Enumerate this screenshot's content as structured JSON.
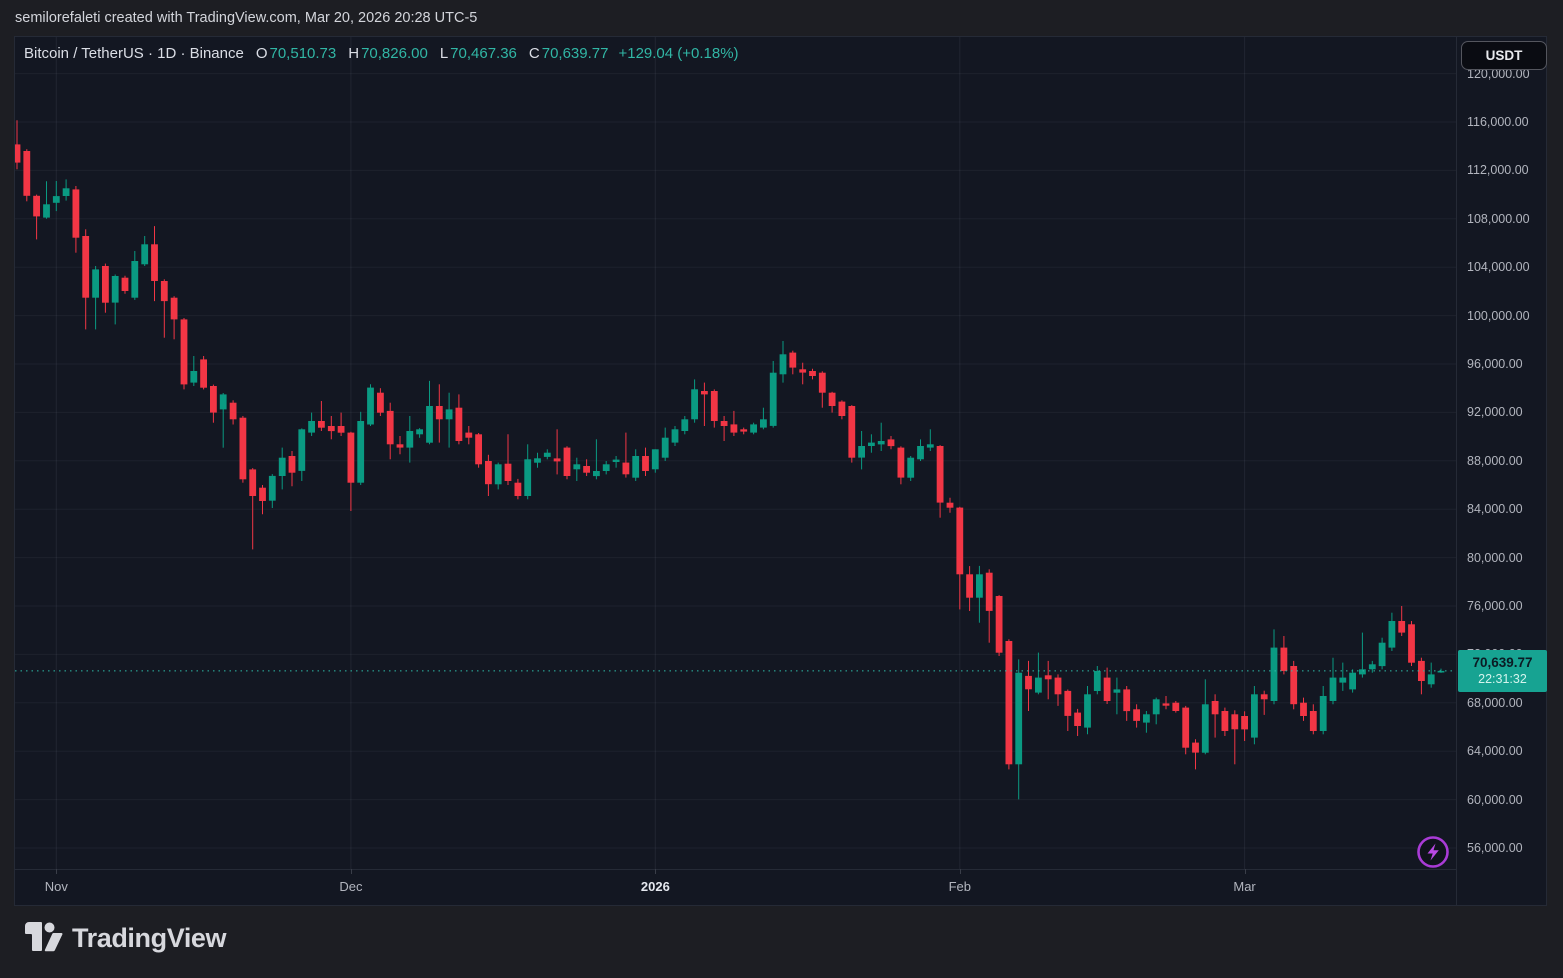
{
  "top_bar": {
    "text": "semilorefaleti created with TradingView.com, Mar 20, 2026 20:28 UTC-5"
  },
  "header": {
    "title": "Bitcoin / TetherUS · 1D · Binance",
    "o_label": "O",
    "o_value": "70,510.73",
    "h_label": "H",
    "h_value": "70,826.00",
    "l_label": "L",
    "l_value": "70,467.36",
    "c_label": "C",
    "c_value": "70,639.77",
    "change": "+129.04 (+0.18%)"
  },
  "currency_button": {
    "label": "USDT"
  },
  "price_axis": {
    "badge": {
      "price": "70,639.77",
      "countdown": "22:31:32"
    }
  },
  "footer": {
    "logo_text": "TradingView"
  },
  "colors": {
    "up": "#0a9a82",
    "down": "#f23645",
    "badge": "#17a392",
    "dotted_line": "#2fbca9",
    "teal_text": "#31b6a5",
    "accent_purple": "#a93bd6",
    "panel_bg": "#131722"
  },
  "chart_data": {
    "type": "candlestick",
    "symbol": "Bitcoin / TetherUS",
    "interval": "1D",
    "exchange": "Binance",
    "last_price": 70639.77,
    "ylim": [
      56000,
      120000
    ],
    "legend_position": "none",
    "grid": true,
    "price_ticks": [
      {
        "label": "120,000.00",
        "value": 120000
      },
      {
        "label": "116,000.00",
        "value": 116000
      },
      {
        "label": "112,000.00",
        "value": 112000
      },
      {
        "label": "108,000.00",
        "value": 108000
      },
      {
        "label": "104,000.00",
        "value": 104000
      },
      {
        "label": "100,000.00",
        "value": 100000
      },
      {
        "label": "96,000.00",
        "value": 96000
      },
      {
        "label": "92,000.00",
        "value": 92000
      },
      {
        "label": "88,000.00",
        "value": 88000
      },
      {
        "label": "84,000.00",
        "value": 84000
      },
      {
        "label": "80,000.00",
        "value": 80000
      },
      {
        "label": "76,000.00",
        "value": 76000
      },
      {
        "label": "72,000.00",
        "value": 72000
      },
      {
        "label": "68,000.00",
        "value": 68000
      },
      {
        "label": "64,000.00",
        "value": 64000
      },
      {
        "label": "60,000.00",
        "value": 60000
      },
      {
        "label": "56,000.00",
        "value": 56000
      }
    ],
    "time_ticks": [
      {
        "label": "Nov",
        "index": 4,
        "year": false
      },
      {
        "label": "Dec",
        "index": 34,
        "year": false
      },
      {
        "label": "2026",
        "index": 65,
        "year": true
      },
      {
        "label": "Feb",
        "index": 96,
        "year": false
      },
      {
        "label": "Mar",
        "index": 125,
        "year": false
      }
    ],
    "candles": [
      [
        114150,
        116150,
        112100,
        112650
      ],
      [
        113600,
        113750,
        109450,
        109900
      ],
      [
        109900,
        110000,
        106300,
        108200
      ],
      [
        108100,
        111100,
        108000,
        109200
      ],
      [
        109330,
        111120,
        108640,
        109880
      ],
      [
        109880,
        111260,
        109500,
        110520
      ],
      [
        110430,
        110710,
        105200,
        106440
      ],
      [
        106580,
        107130,
        98860,
        101480
      ],
      [
        101480,
        104100,
        98860,
        103820
      ],
      [
        104100,
        104300,
        100240,
        101070
      ],
      [
        101070,
        103400,
        99270,
        103270
      ],
      [
        103130,
        103300,
        101800,
        102030
      ],
      [
        101480,
        105340,
        101300,
        104510
      ],
      [
        104240,
        106580,
        104100,
        105890
      ],
      [
        105890,
        107400,
        101200,
        102860
      ],
      [
        102860,
        103000,
        98170,
        101200
      ],
      [
        101480,
        101600,
        98040,
        99690
      ],
      [
        99690,
        99800,
        93900,
        94320
      ],
      [
        94460,
        96660,
        94180,
        95420
      ],
      [
        96380,
        96660,
        93900,
        94040
      ],
      [
        94180,
        94300,
        91150,
        91980
      ],
      [
        92250,
        93600,
        89080,
        93490
      ],
      [
        92800,
        93000,
        91000,
        91430
      ],
      [
        91560,
        91700,
        86190,
        86470
      ],
      [
        87290,
        87400,
        80680,
        85090
      ],
      [
        85780,
        86000,
        83580,
        84680
      ],
      [
        84700,
        86900,
        84100,
        86750
      ],
      [
        86750,
        89090,
        85640,
        88260
      ],
      [
        88400,
        88810,
        85900,
        87020
      ],
      [
        87160,
        90680,
        86330,
        90600
      ],
      [
        90330,
        91980,
        90050,
        91290
      ],
      [
        91290,
        92940,
        90460,
        90740
      ],
      [
        90880,
        91700,
        89780,
        90460
      ],
      [
        90880,
        91980,
        90050,
        90330
      ],
      [
        90330,
        90400,
        83850,
        86190
      ],
      [
        86190,
        92050,
        86000,
        91290
      ],
      [
        91000,
        94320,
        90880,
        94050
      ],
      [
        93630,
        94000,
        91700,
        91980
      ],
      [
        92120,
        92800,
        88120,
        89360
      ],
      [
        89360,
        90050,
        88540,
        89090
      ],
      [
        89090,
        91700,
        87850,
        90460
      ],
      [
        90190,
        90700,
        89900,
        90600
      ],
      [
        89500,
        94600,
        89360,
        92530
      ],
      [
        92530,
        94320,
        89500,
        91430
      ],
      [
        91430,
        93630,
        89090,
        92250
      ],
      [
        92390,
        93490,
        89360,
        89640
      ],
      [
        90330,
        90880,
        89360,
        89910
      ],
      [
        90190,
        90300,
        87430,
        87710
      ],
      [
        87980,
        88500,
        85090,
        86060
      ],
      [
        86060,
        87850,
        85640,
        87710
      ],
      [
        87760,
        90190,
        86000,
        86330
      ],
      [
        86190,
        86500,
        84820,
        85090
      ],
      [
        85090,
        89360,
        84820,
        88120
      ],
      [
        87850,
        88670,
        87430,
        88210
      ],
      [
        88320,
        88950,
        88120,
        88670
      ],
      [
        88200,
        90600,
        86880,
        87950
      ],
      [
        89090,
        89200,
        86470,
        86740
      ],
      [
        87300,
        88260,
        86330,
        87710
      ],
      [
        87570,
        88120,
        86740,
        87020
      ],
      [
        86740,
        89780,
        86470,
        87160
      ],
      [
        87160,
        87980,
        86880,
        87710
      ],
      [
        87900,
        88400,
        87430,
        88100
      ],
      [
        87850,
        90330,
        86610,
        86880
      ],
      [
        86610,
        88950,
        86330,
        88400
      ],
      [
        88400,
        89090,
        86740,
        87160
      ],
      [
        87300,
        88950,
        87020,
        88950
      ],
      [
        88260,
        90740,
        87980,
        89910
      ],
      [
        89500,
        90880,
        89220,
        90600
      ],
      [
        90460,
        91700,
        90190,
        91430
      ],
      [
        91430,
        94730,
        91150,
        93910
      ],
      [
        93770,
        94460,
        90880,
        93490
      ],
      [
        93770,
        93900,
        90740,
        91290
      ],
      [
        91290,
        91700,
        89640,
        90880
      ],
      [
        91010,
        92120,
        90050,
        90330
      ],
      [
        90600,
        90740,
        90190,
        90410
      ],
      [
        90330,
        91150,
        90190,
        91010
      ],
      [
        90740,
        92390,
        90600,
        91430
      ],
      [
        90880,
        96250,
        90740,
        95280
      ],
      [
        95150,
        97900,
        94460,
        96800
      ],
      [
        96940,
        97100,
        95150,
        95700
      ],
      [
        95560,
        96110,
        94320,
        95290
      ],
      [
        95420,
        95600,
        94730,
        95010
      ],
      [
        95280,
        95400,
        92390,
        93630
      ],
      [
        93630,
        93700,
        91980,
        92530
      ],
      [
        92890,
        93000,
        91430,
        91700
      ],
      [
        92530,
        92600,
        87850,
        88260
      ],
      [
        88260,
        90460,
        87290,
        89220
      ],
      [
        89220,
        90190,
        88670,
        89500
      ],
      [
        89360,
        91150,
        88810,
        89640
      ],
      [
        89770,
        90050,
        88950,
        89220
      ],
      [
        89090,
        89200,
        86060,
        86610
      ],
      [
        86610,
        88400,
        86330,
        88260
      ],
      [
        88120,
        89770,
        87980,
        89220
      ],
      [
        89090,
        90600,
        88810,
        89360
      ],
      [
        89220,
        89300,
        83300,
        84540
      ],
      [
        84540,
        84950,
        83710,
        84130
      ],
      [
        84130,
        84200,
        75720,
        78620
      ],
      [
        78620,
        79300,
        75590,
        76690
      ],
      [
        76690,
        79310,
        74620,
        78620
      ],
      [
        78750,
        79030,
        72970,
        75590
      ],
      [
        76830,
        76900,
        71870,
        72140
      ],
      [
        73110,
        73250,
        62500,
        62920
      ],
      [
        62920,
        71590,
        60020,
        70490
      ],
      [
        70220,
        71460,
        67320,
        69110
      ],
      [
        68840,
        72150,
        68700,
        70080
      ],
      [
        70270,
        71460,
        68290,
        69940
      ],
      [
        70080,
        70350,
        67740,
        68700
      ],
      [
        68980,
        69100,
        65670,
        66910
      ],
      [
        67190,
        67500,
        65260,
        66080
      ],
      [
        65950,
        69390,
        65400,
        68700
      ],
      [
        68980,
        71040,
        68700,
        70630
      ],
      [
        70080,
        70910,
        67900,
        68150
      ],
      [
        68840,
        70080,
        67050,
        69110
      ],
      [
        69110,
        69390,
        66500,
        67320
      ],
      [
        67460,
        67880,
        65950,
        66500
      ],
      [
        66360,
        67320,
        65530,
        67050
      ],
      [
        67050,
        68430,
        66220,
        68290
      ],
      [
        67950,
        68560,
        67460,
        67760
      ],
      [
        68010,
        68150,
        67190,
        67320
      ],
      [
        67600,
        67740,
        63740,
        64290
      ],
      [
        64710,
        64980,
        62500,
        63880
      ],
      [
        63880,
        69940,
        63740,
        67880
      ],
      [
        68150,
        68700,
        65120,
        67050
      ],
      [
        67320,
        67600,
        65260,
        65670
      ],
      [
        67050,
        67380,
        62920,
        65810
      ],
      [
        66910,
        67300,
        64840,
        65800
      ],
      [
        65120,
        69390,
        64570,
        68700
      ],
      [
        68700,
        69000,
        67000,
        68290
      ],
      [
        68150,
        74070,
        67880,
        72560
      ],
      [
        72560,
        73520,
        70350,
        70630
      ],
      [
        71040,
        71460,
        67460,
        67880
      ],
      [
        68010,
        68430,
        66500,
        66910
      ],
      [
        67320,
        67880,
        65400,
        65670
      ],
      [
        65670,
        69390,
        65400,
        68560
      ],
      [
        68150,
        71730,
        67880,
        70080
      ],
      [
        69670,
        71320,
        68980,
        70080
      ],
      [
        69110,
        70770,
        68840,
        70490
      ],
      [
        70350,
        73800,
        70080,
        70770
      ],
      [
        70770,
        71460,
        70490,
        71180
      ],
      [
        71040,
        73380,
        70770,
        72970
      ],
      [
        72560,
        75450,
        72280,
        74760
      ],
      [
        74760,
        76000,
        73520,
        73800
      ],
      [
        74490,
        74760,
        71040,
        71320
      ],
      [
        71460,
        71730,
        68700,
        69800
      ],
      [
        69530,
        71320,
        69250,
        70350
      ],
      [
        70510.73,
        70826,
        70467.36,
        70639.77
      ]
    ]
  }
}
